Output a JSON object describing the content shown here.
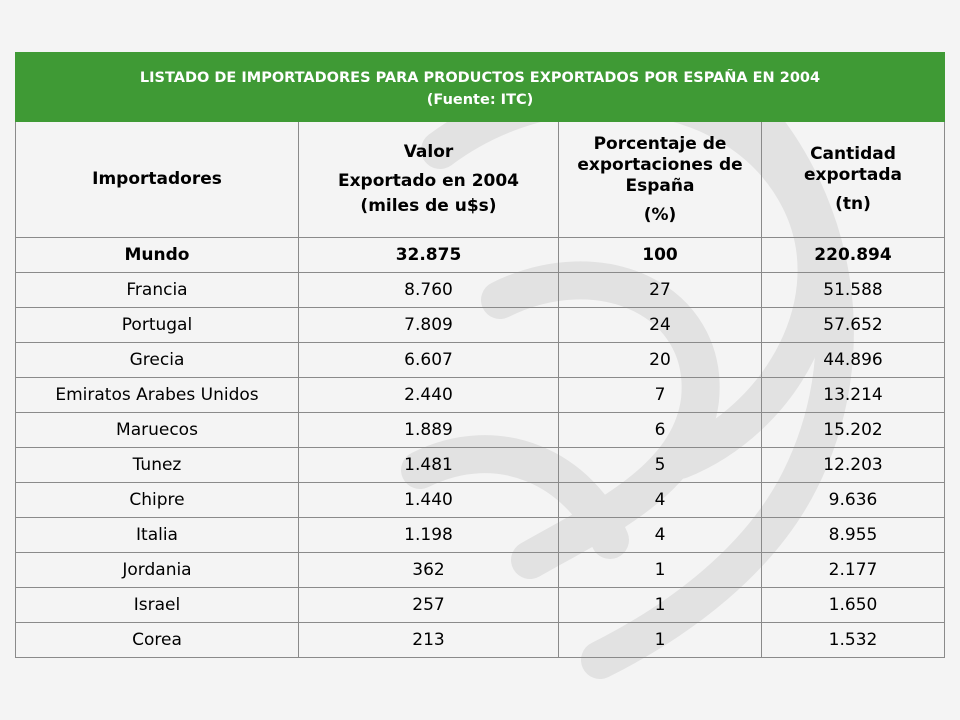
{
  "title": {
    "line1": "LISTADO DE IMPORTADORES PARA PRODUCTOS EXPORTADOS POR ESPAÑA EN 2004",
    "line2": "(Fuente: ITC)"
  },
  "headers": {
    "importers": "Importadores",
    "value": [
      "Valor",
      "Exportado en 2004",
      "(miles de u$s)"
    ],
    "percent": [
      "Porcentaje de exportaciones de España",
      "(%)"
    ],
    "quantity": [
      "Cantidad exportada",
      "(tn)"
    ]
  },
  "total": {
    "country": "Mundo",
    "value": "32.875",
    "percent": "100",
    "quantity": "220.894"
  },
  "rows": [
    {
      "country": "Francia",
      "value": "8.760",
      "percent": "27",
      "quantity": "51.588"
    },
    {
      "country": "Portugal",
      "value": "7.809",
      "percent": "24",
      "quantity": "57.652"
    },
    {
      "country": "Grecia",
      "value": "6.607",
      "percent": "20",
      "quantity": "44.896"
    },
    {
      "country": "Emiratos Arabes Unidos",
      "value": "2.440",
      "percent": "7",
      "quantity": "13.214"
    },
    {
      "country": "Maruecos",
      "value": "1.889",
      "percent": "6",
      "quantity": "15.202"
    },
    {
      "country": "Tunez",
      "value": "1.481",
      "percent": "5",
      "quantity": "12.203"
    },
    {
      "country": "Chipre",
      "value": "1.440",
      "percent": "4",
      "quantity": "9.636"
    },
    {
      "country": "Italia",
      "value": "1.198",
      "percent": "4",
      "quantity": "8.955"
    },
    {
      "country": "Jordania",
      "value": "362",
      "percent": "1",
      "quantity": "2.177"
    },
    {
      "country": "Israel",
      "value": "257",
      "percent": "1",
      "quantity": "1.650"
    },
    {
      "country": "Corea",
      "value": "213",
      "percent": "1",
      "quantity": "1.532"
    }
  ],
  "colors": {
    "title_background": "#3f9a35",
    "title_text": "#ffffff",
    "background": "#f4f4f4",
    "border": "#8a8a8a"
  }
}
